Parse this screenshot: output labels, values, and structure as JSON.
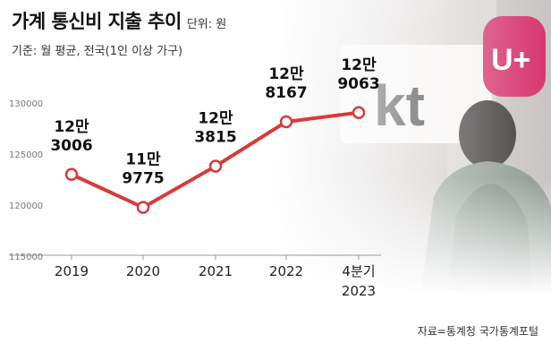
{
  "title": "가계 통신비 지출 추이",
  "unit_label": "단위: 원",
  "subtitle": "기준: 월 평균, 전국(1인 이상 가구)",
  "source": "자료=통계청 국가통계포털",
  "colors": {
    "line": "#d93a3a",
    "marker_fill": "#ffffff",
    "axis": "#999999",
    "text": "#222222"
  },
  "photo": {
    "sign_text": "kt",
    "logo": "U+"
  },
  "chart_data": {
    "type": "line",
    "categories": [
      "2019",
      "2020",
      "2021",
      "2022",
      "4분기\n2023"
    ],
    "values": [
      123006,
      119775,
      123815,
      128167,
      129063
    ],
    "value_labels": [
      "12만\n3006",
      "11만\n9775",
      "12만\n3815",
      "12만\n8167",
      "12만\n9063"
    ],
    "y_ticks": [
      115000,
      120000,
      125000,
      130000
    ],
    "ylim": [
      115000,
      131500
    ],
    "grid": false,
    "title": "가계 통신비 지출 추이",
    "ylabel": "",
    "xlabel": ""
  }
}
